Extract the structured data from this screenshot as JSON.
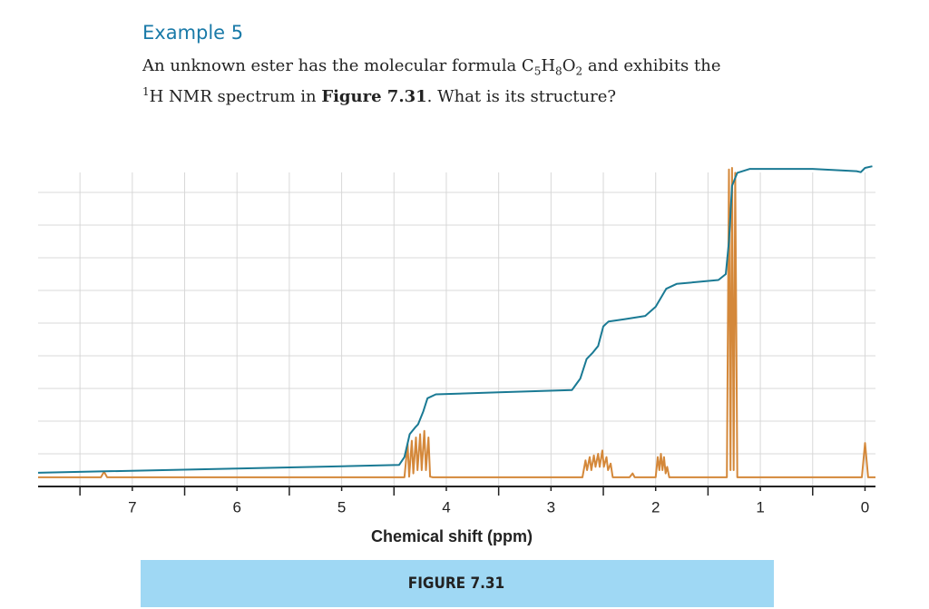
{
  "header": {
    "title": "Example 5",
    "line1": [
      "An unknown ester has the molecular formula C",
      "5",
      "H",
      "8",
      "O",
      "2",
      " and exhibits the"
    ],
    "line2": [
      "1",
      "H NMR spectrum in ",
      "Figure 7.31",
      ". What is its structure?"
    ]
  },
  "caption": "FIGURE 7.31",
  "chart_data": {
    "type": "line",
    "x_label": "Chemical shift (ppm)",
    "xlim": [
      7.9,
      -0.1
    ],
    "ylim": [
      0,
      10
    ],
    "xticks": [
      7,
      6,
      5,
      4,
      3,
      2,
      1,
      0
    ],
    "xticks_minor": [
      7.5,
      6.5,
      5.5,
      4.5,
      3.5,
      2.5,
      1.5,
      0.5
    ],
    "y_gridlines": [
      1,
      2,
      3,
      4,
      5,
      6,
      7,
      8,
      9
    ],
    "grid": true,
    "series": [
      {
        "color": "#d4883a",
        "x": [
          7.9,
          7.3,
          7.27,
          7.24,
          4.4,
          4.37,
          4.355,
          4.33,
          4.315,
          4.29,
          4.275,
          4.25,
          4.235,
          4.21,
          4.195,
          4.17,
          4.155,
          4.13,
          2.7,
          2.67,
          2.655,
          2.63,
          2.615,
          2.59,
          2.575,
          2.55,
          2.535,
          2.51,
          2.495,
          2.47,
          2.455,
          2.43,
          2.41,
          2.25,
          2.22,
          2.2,
          2.0,
          1.98,
          1.965,
          1.95,
          1.935,
          1.92,
          1.905,
          1.89,
          1.87,
          1.32,
          1.3,
          1.285,
          1.27,
          1.255,
          1.24,
          1.22,
          0.03,
          0.0,
          -0.03,
          -0.1
        ],
        "values": [
          0.28,
          0.28,
          0.45,
          0.28,
          0.28,
          1.3,
          0.3,
          1.4,
          0.4,
          1.5,
          0.5,
          1.6,
          0.5,
          1.7,
          0.5,
          1.5,
          0.3,
          0.28,
          0.28,
          0.8,
          0.5,
          0.9,
          0.5,
          0.95,
          0.6,
          1.0,
          0.6,
          1.1,
          0.6,
          0.9,
          0.5,
          0.7,
          0.28,
          0.28,
          0.4,
          0.28,
          0.28,
          0.9,
          0.5,
          1.0,
          0.5,
          0.9,
          0.4,
          0.6,
          0.28,
          0.28,
          9.7,
          0.5,
          9.75,
          0.5,
          9.6,
          0.28,
          0.28,
          1.33,
          0.28,
          0.28
        ]
      },
      {
        "color": "#1a7a94",
        "x": [
          7.9,
          6,
          5,
          4.45,
          4.4,
          4.35,
          4.3,
          4.27,
          4.22,
          4.18,
          4.1,
          3.5,
          2.8,
          2.72,
          2.66,
          2.6,
          2.55,
          2.5,
          2.45,
          2.3,
          2.1,
          2.0,
          1.9,
          1.8,
          1.4,
          1.33,
          1.3,
          1.27,
          1.22,
          1.1,
          0.5,
          0.08,
          0.04,
          0.0,
          -0.07
        ],
        "values": [
          0.42,
          0.55,
          0.62,
          0.66,
          0.9,
          1.6,
          1.8,
          1.9,
          2.3,
          2.7,
          2.82,
          2.88,
          2.95,
          3.3,
          3.9,
          4.1,
          4.3,
          4.9,
          5.05,
          5.12,
          5.22,
          5.5,
          6.05,
          6.2,
          6.32,
          6.5,
          7.5,
          9.2,
          9.6,
          9.72,
          9.72,
          9.65,
          9.62,
          9.75,
          9.8
        ]
      }
    ]
  }
}
